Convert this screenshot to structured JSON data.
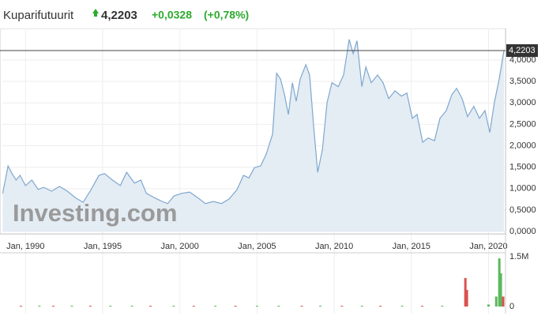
{
  "chart_data": {
    "type": "area",
    "title": "Kuparifutuurit",
    "current": {
      "value": 4.2203,
      "label": "4,2203"
    },
    "change": {
      "value": 0.0328,
      "label": "+0,0328"
    },
    "change_pct": {
      "value": 0.78,
      "label": "(+0,78%)"
    },
    "watermark": "Investing.com",
    "color": "#7fa7cf",
    "fill": "#e4ecf4",
    "grid": true,
    "x": [
      1988.52,
      1988.87,
      1989.13,
      1989.39,
      1989.64,
      1990.0,
      1990.41,
      1990.82,
      1991.18,
      1991.69,
      1992.2,
      1992.71,
      1993.22,
      1993.73,
      1994.25,
      1994.76,
      1995.12,
      1995.63,
      1996.14,
      1996.55,
      1997.06,
      1997.47,
      1997.83,
      1998.34,
      1998.85,
      1999.21,
      1999.62,
      2000.13,
      2000.64,
      2001.15,
      2001.66,
      2002.17,
      2002.69,
      2003.2,
      2003.71,
      2004.12,
      2004.48,
      2004.83,
      2005.24,
      2005.6,
      2006.01,
      2006.27,
      2006.52,
      2006.78,
      2007.03,
      2007.29,
      2007.54,
      2007.8,
      2008.16,
      2008.41,
      2008.67,
      2008.93,
      2009.23,
      2009.54,
      2009.85,
      2010.26,
      2010.61,
      2010.97,
      2011.23,
      2011.48,
      2011.79,
      2012.05,
      2012.4,
      2012.81,
      2013.17,
      2013.53,
      2013.94,
      2014.35,
      2014.71,
      2015.06,
      2015.37,
      2015.73,
      2016.09,
      2016.5,
      2016.85,
      2017.26,
      2017.62,
      2017.93,
      2018.29,
      2018.64,
      2019.05,
      2019.41,
      2019.77,
      2020.08,
      2020.38,
      2020.69,
      2021.0
    ],
    "values": [
      0.89,
      1.53,
      1.35,
      1.2,
      1.31,
      1.07,
      1.2,
      0.98,
      1.03,
      0.94,
      1.05,
      0.94,
      0.79,
      0.68,
      0.98,
      1.31,
      1.35,
      1.2,
      1.07,
      1.38,
      1.13,
      1.2,
      0.89,
      0.79,
      0.7,
      0.65,
      0.83,
      0.89,
      0.92,
      0.79,
      0.65,
      0.7,
      0.65,
      0.76,
      0.98,
      1.31,
      1.25,
      1.49,
      1.53,
      1.81,
      2.27,
      3.69,
      3.56,
      3.19,
      2.73,
      3.47,
      3.04,
      3.56,
      3.89,
      3.65,
      2.45,
      1.38,
      1.9,
      3.01,
      3.47,
      3.38,
      3.65,
      4.48,
      4.15,
      4.45,
      3.38,
      3.84,
      3.47,
      3.65,
      3.47,
      3.1,
      3.28,
      3.16,
      3.23,
      2.64,
      2.73,
      2.08,
      2.18,
      2.12,
      2.64,
      2.82,
      3.19,
      3.34,
      3.1,
      2.68,
      2.92,
      2.64,
      2.82,
      2.31,
      3.01,
      3.56,
      4.22
    ],
    "xlim": [
      1988.5,
      2021.1
    ],
    "xticks": [
      {
        "value": 1990,
        "label": "Jan, 1990"
      },
      {
        "value": 1995,
        "label": "Jan, 1995"
      },
      {
        "value": 2000,
        "label": "Jan, 2000"
      },
      {
        "value": 2005,
        "label": "Jan, 2005"
      },
      {
        "value": 2010,
        "label": "Jan, 2010"
      },
      {
        "value": 2015,
        "label": "Jan, 2015"
      },
      {
        "value": 2020,
        "label": "Jan, 2020"
      }
    ],
    "ylim": [
      0,
      4.7
    ],
    "yticks": [
      {
        "value": 0,
        "label": "0,0000"
      },
      {
        "value": 0.5,
        "label": "0,5000"
      },
      {
        "value": 1,
        "label": "1,0000"
      },
      {
        "value": 1.5,
        "label": "1,5000"
      },
      {
        "value": 2,
        "label": "2,0000"
      },
      {
        "value": 2.5,
        "label": "2,5000"
      },
      {
        "value": 3,
        "label": "3,0000"
      },
      {
        "value": 3.5,
        "label": "3,5000"
      },
      {
        "value": 4,
        "label": "4,0000"
      }
    ],
    "volume": {
      "x": [
        1989.7,
        1990.9,
        1991.8,
        1993.0,
        1994.2,
        1995.5,
        1996.9,
        1998.1,
        1999.6,
        2000.9,
        2002.3,
        2003.6,
        2005.0,
        2006.4,
        2007.9,
        2009.1,
        2010.5,
        2011.8,
        2013.0,
        2014.4,
        2015.7,
        2017.0,
        2018.5,
        2018.6,
        2020.0,
        2020.5,
        2020.7,
        2020.8,
        2020.95
      ],
      "values": [
        12000,
        10000,
        15000,
        8000,
        12000,
        10000,
        14000,
        9000,
        11000,
        13000,
        10000,
        12000,
        15000,
        11000,
        14000,
        9000,
        16000,
        12000,
        10000,
        14000,
        12000,
        15000,
        860000,
        500000,
        60000,
        300000,
        1450000,
        1000000,
        300000
      ],
      "colors": [
        "#d9534f",
        "#5cb85c",
        "#d9534f",
        "#5cb85c",
        "#d9534f",
        "#5cb85c",
        "#5cb85c",
        "#d9534f",
        "#5cb85c",
        "#d9534f",
        "#5cb85c",
        "#d9534f",
        "#5cb85c",
        "#5cb85c",
        "#d9534f",
        "#5cb85c",
        "#d9534f",
        "#5cb85c",
        "#d9534f",
        "#5cb85c",
        "#d9534f",
        "#5cb85c",
        "#d9534f",
        "#d9534f",
        "#5cb85c",
        "#5cb85c",
        "#5cb85c",
        "#5cb85c",
        "#d9534f"
      ],
      "ylim": [
        0,
        1500000
      ],
      "yticks": [
        0,
        {
          "value": 1500000,
          "label": "1.5M"
        }
      ]
    }
  }
}
